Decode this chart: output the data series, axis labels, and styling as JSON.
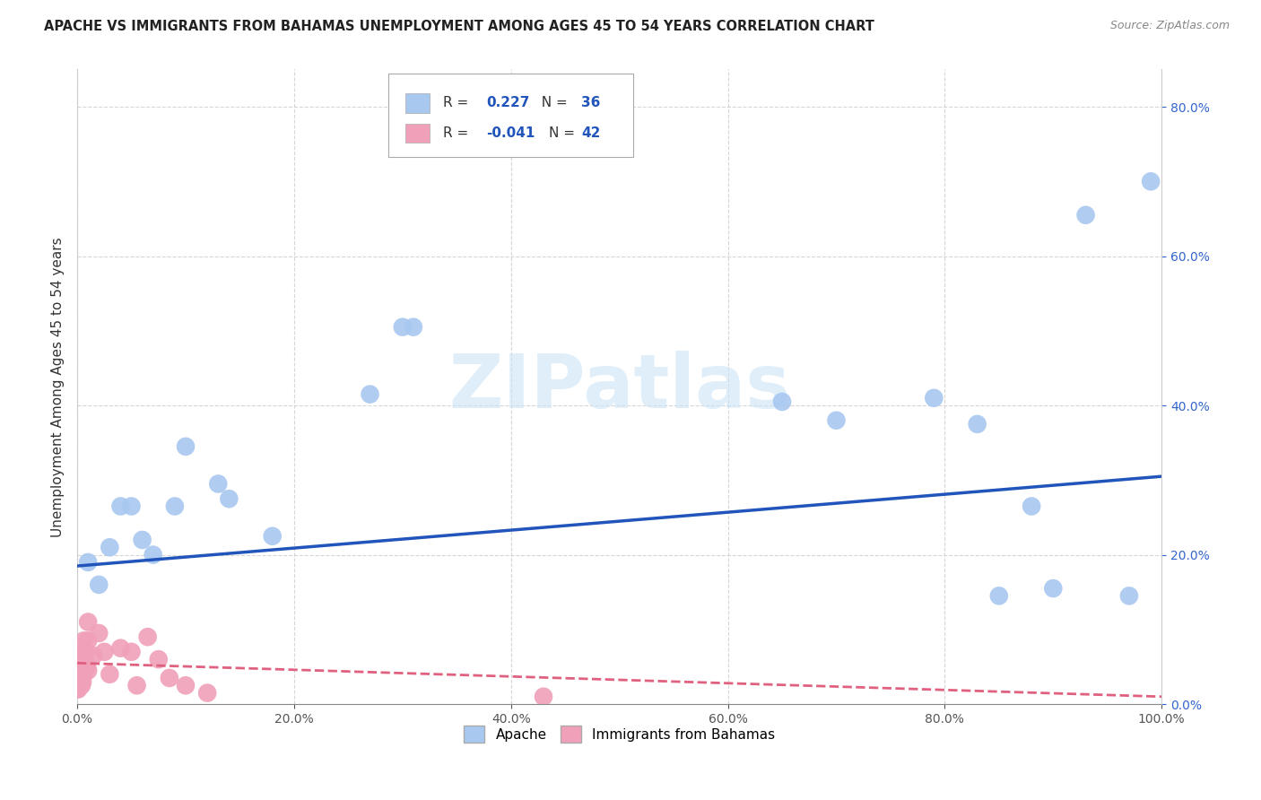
{
  "title": "APACHE VS IMMIGRANTS FROM BAHAMAS UNEMPLOYMENT AMONG AGES 45 TO 54 YEARS CORRELATION CHART",
  "source": "Source: ZipAtlas.com",
  "ylabel": "Unemployment Among Ages 45 to 54 years",
  "watermark": "ZIPatlas",
  "legend_apache": "Apache",
  "legend_bahamas": "Immigrants from Bahamas",
  "apache_r": "0.227",
  "apache_n": "36",
  "bahamas_r": "-0.041",
  "bahamas_n": "42",
  "apache_color": "#a8c8f0",
  "apache_line_color": "#2255bb",
  "bahamas_color": "#f0a0b8",
  "bahamas_line_color": "#e06080",
  "xlim": [
    0,
    1.0
  ],
  "ylim": [
    0,
    0.85
  ],
  "apache_x": [
    0.01,
    0.02,
    0.03,
    0.04,
    0.05,
    0.06,
    0.07,
    0.09,
    0.1,
    0.13,
    0.14,
    0.18,
    0.27,
    0.3,
    0.31,
    0.65,
    0.7,
    0.79,
    0.83,
    0.85,
    0.88,
    0.9,
    0.93,
    0.97,
    0.99
  ],
  "apache_y": [
    0.19,
    0.16,
    0.21,
    0.265,
    0.265,
    0.22,
    0.2,
    0.265,
    0.345,
    0.295,
    0.275,
    0.225,
    0.415,
    0.505,
    0.505,
    0.405,
    0.38,
    0.41,
    0.375,
    0.145,
    0.265,
    0.155,
    0.655,
    0.145,
    0.7
  ],
  "bahamas_x": [
    0.0,
    0.0,
    0.001,
    0.001,
    0.002,
    0.002,
    0.003,
    0.003,
    0.004,
    0.004,
    0.005,
    0.005,
    0.006,
    0.006,
    0.007,
    0.008,
    0.009,
    0.01,
    0.01,
    0.01,
    0.015,
    0.02,
    0.025,
    0.03,
    0.04,
    0.05,
    0.055,
    0.065,
    0.075,
    0.085,
    0.1,
    0.12,
    0.43
  ],
  "bahamas_y": [
    0.02,
    0.04,
    0.02,
    0.03,
    0.05,
    0.03,
    0.04,
    0.06,
    0.025,
    0.055,
    0.03,
    0.07,
    0.04,
    0.085,
    0.06,
    0.07,
    0.05,
    0.085,
    0.11,
    0.045,
    0.065,
    0.095,
    0.07,
    0.04,
    0.075,
    0.07,
    0.025,
    0.09,
    0.06,
    0.035,
    0.025,
    0.015,
    0.01
  ],
  "apache_trendline_x": [
    0.0,
    1.0
  ],
  "apache_trendline_y": [
    0.185,
    0.305
  ],
  "bahamas_trendline_x": [
    0.0,
    1.0
  ],
  "bahamas_trendline_y": [
    0.055,
    0.01
  ]
}
